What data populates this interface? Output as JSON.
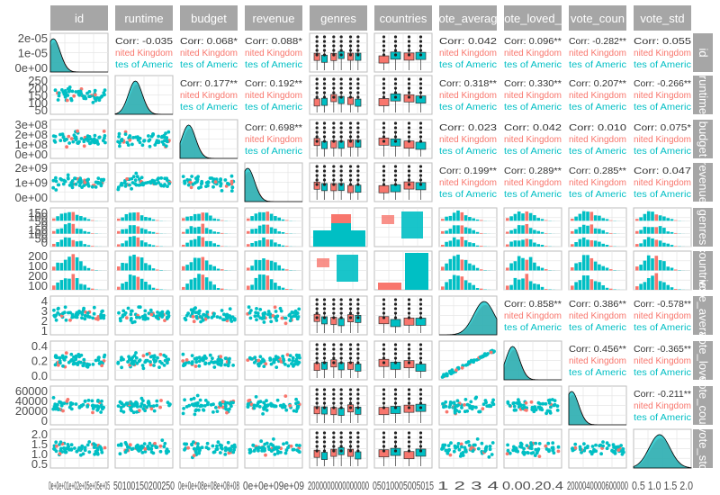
{
  "chart_data": {
    "type": "scatter-matrix",
    "variables": [
      "id",
      "runtime",
      "budget",
      "revenue",
      "genres",
      "countries",
      "vote_average",
      "vote_loved",
      "vote_count",
      "vote_std"
    ],
    "column_strip_labels": [
      "id",
      "runtime",
      "budget",
      "revenue",
      "genres",
      "countries",
      "ote_averag",
      "ote_loved_",
      "vote_coun",
      "vote_std"
    ],
    "row_strip_labels": [
      "id",
      "runtime",
      "budget",
      "revenue",
      "genres",
      "countries",
      "vote_average",
      "vote_loved",
      "vote_count",
      "vote_std"
    ],
    "groups": [
      {
        "name": "United Kingdom",
        "color": "#F8766D"
      },
      {
        "name": "United States of America",
        "color": "#00BFC4"
      }
    ],
    "group_labels_shown": [
      "nited Kingdom",
      "tes of Americ"
    ],
    "correlations": [
      {
        "row": 0,
        "col": 1,
        "label": "Corr: -0.035"
      },
      {
        "row": 0,
        "col": 2,
        "label": "Corr: 0.068*"
      },
      {
        "row": 0,
        "col": 3,
        "label": "Corr: 0.088*"
      },
      {
        "row": 0,
        "col": 6,
        "label": "Corr: 0.042"
      },
      {
        "row": 0,
        "col": 7,
        "label": "Corr: 0.096**"
      },
      {
        "row": 0,
        "col": 8,
        "label": "Corr: -0.282**"
      },
      {
        "row": 0,
        "col": 9,
        "label": "Corr: 0.055"
      },
      {
        "row": 1,
        "col": 2,
        "label": "Corr: 0.177**"
      },
      {
        "row": 1,
        "col": 3,
        "label": "Corr: 0.192**"
      },
      {
        "row": 1,
        "col": 6,
        "label": "Corr: 0.318**"
      },
      {
        "row": 1,
        "col": 7,
        "label": "Corr: 0.330**"
      },
      {
        "row": 1,
        "col": 8,
        "label": "Corr: 0.207**"
      },
      {
        "row": 1,
        "col": 9,
        "label": "Corr: -0.266**"
      },
      {
        "row": 2,
        "col": 3,
        "label": "Corr: 0.698**"
      },
      {
        "row": 2,
        "col": 6,
        "label": "Corr: 0.023"
      },
      {
        "row": 2,
        "col": 7,
        "label": "Corr: 0.042"
      },
      {
        "row": 2,
        "col": 8,
        "label": "Corr: 0.010"
      },
      {
        "row": 2,
        "col": 9,
        "label": "Corr: 0.075*"
      },
      {
        "row": 3,
        "col": 6,
        "label": "Corr: 0.199**"
      },
      {
        "row": 3,
        "col": 7,
        "label": "Corr: 0.289**"
      },
      {
        "row": 3,
        "col": 8,
        "label": "Corr: 0.285**"
      },
      {
        "row": 3,
        "col": 9,
        "label": "Corr: 0.047"
      },
      {
        "row": 6,
        "col": 7,
        "label": "Corr: 0.858**"
      },
      {
        "row": 6,
        "col": 8,
        "label": "Corr: 0.386**"
      },
      {
        "row": 6,
        "col": 9,
        "label": "Corr: -0.578**"
      },
      {
        "row": 7,
        "col": 8,
        "label": "Corr: 0.456**"
      },
      {
        "row": 7,
        "col": 9,
        "label": "Corr: -0.365**"
      },
      {
        "row": 8,
        "col": 9,
        "label": "Corr: -0.211**"
      }
    ],
    "y_tick_labels": [
      [
        "2e-05",
        "1e-05",
        "0e+00"
      ],
      [
        "250",
        "200",
        "150",
        "100",
        "50"
      ],
      [
        "3e+08",
        "2e+08",
        "1e+08",
        "0e+00"
      ],
      [
        "2e+09",
        "1e+09",
        "0e+00"
      ],
      [
        "150",
        "100",
        "50",
        "0",
        "150",
        "100",
        "50",
        "0"
      ],
      [
        "200",
        "100",
        "200",
        "100"
      ],
      [
        "4",
        "3",
        "2",
        "1"
      ],
      [
        "0.4",
        "0.2",
        "0.0"
      ],
      [
        "60000",
        "40000",
        "20000",
        "0"
      ],
      [
        "2.0",
        "1.5",
        "1.0",
        "0.5"
      ]
    ],
    "x_tick_labels": [
      "0e+0e+01e+02e+05e+05e+05",
      "50100150200250",
      "0e+0e+08e+08e+08+08",
      "0e+0e+09e+09",
      "2000000000000000",
      "05010005005015",
      "1 2 3 4",
      "0.00.20.4",
      "2000040000600000",
      "0.5 1.0 1.5 2.0"
    ]
  }
}
